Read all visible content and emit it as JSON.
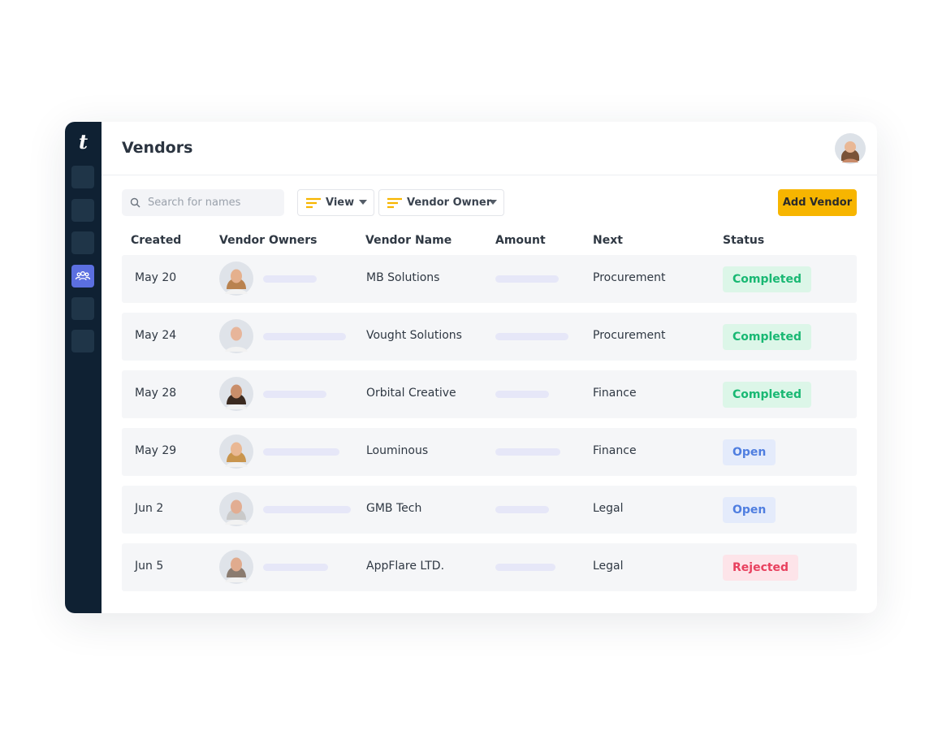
{
  "header": {
    "logo": "t",
    "title": "Vendors"
  },
  "toolbar": {
    "search_placeholder": "Search for names",
    "filters": [
      "View",
      "Vendor Owner"
    ],
    "button": "Add Vendor"
  },
  "table": {
    "columns": [
      "Created",
      "Vendor Owners",
      "Vendor Name",
      "Amount",
      "Next",
      "Status"
    ],
    "rows": [
      {
        "created": "May 20",
        "vendor_name": "MB Solutions",
        "next": "Procurement",
        "status": "Completed",
        "status_color": "#19b873",
        "status_bg": "#dcf6e8"
      },
      {
        "created": "May 24",
        "vendor_name": "Vought Solutions",
        "next": "Procurement",
        "status": "Completed",
        "status_color": "#19b873",
        "status_bg": "#dcf6e8"
      },
      {
        "created": "May 28",
        "vendor_name": "Orbital Creative",
        "next": "Finance",
        "status": "Completed",
        "status_color": "#19b873",
        "status_bg": "#dcf6e8"
      },
      {
        "created": "May 29",
        "vendor_name": "Louminous",
        "next": "Finance",
        "status": "Open",
        "status_color": "#4f7ee0",
        "status_bg": "#e4ebfb"
      },
      {
        "created": "Jun 2",
        "vendor_name": "GMB Tech",
        "next": "Legal",
        "status": "Open",
        "status_color": "#4f7ee0",
        "status_bg": "#e4ebfb"
      },
      {
        "created": "Jun 5",
        "vendor_name": "AppFlare LTD.",
        "next": "Legal",
        "status": "Rejected",
        "status_color": "#e8405e",
        "status_bg": "#fde4e9"
      }
    ]
  }
}
